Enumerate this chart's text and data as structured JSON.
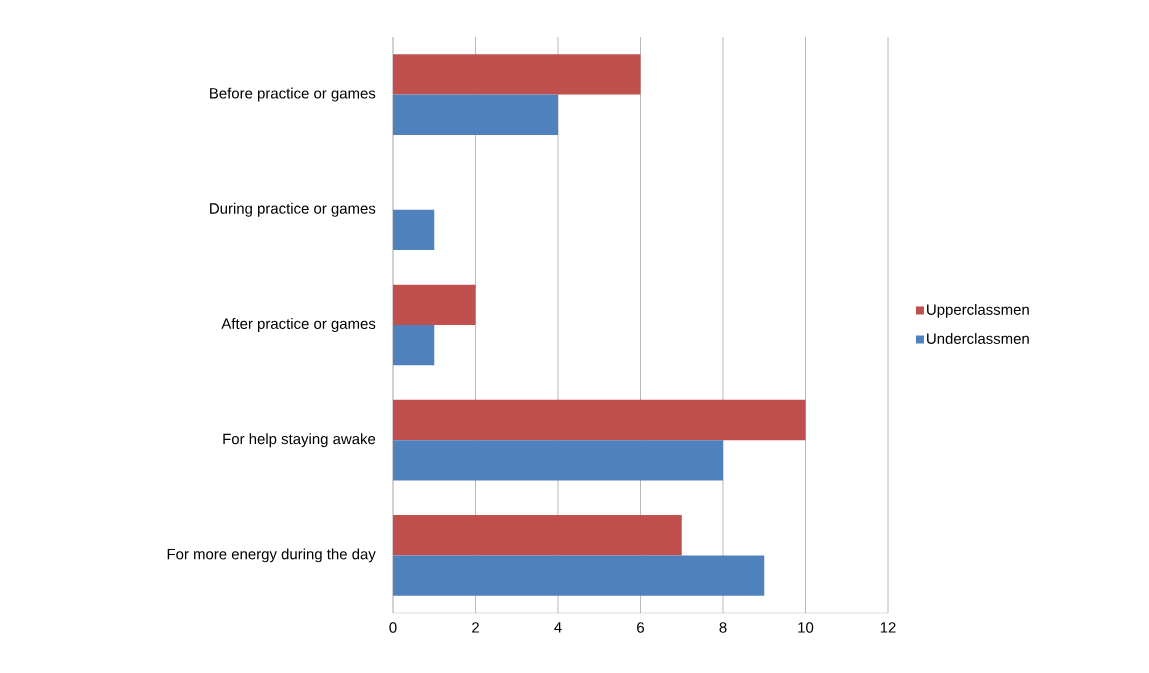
{
  "chart_data": {
    "type": "bar",
    "orientation": "horizontal",
    "categories": [
      "Before practice or games",
      "During practice or games",
      "After practice or games",
      "For help staying awake",
      "For more energy during the day"
    ],
    "series": [
      {
        "name": "Upperclassmen",
        "color": "#c0504d",
        "values": [
          6,
          0,
          2,
          10,
          7
        ]
      },
      {
        "name": "Underclassmen",
        "color": "#4f81bd",
        "values": [
          4,
          1,
          1,
          8,
          9
        ]
      }
    ],
    "xlim": [
      0,
      12
    ],
    "xticks": [
      0,
      2,
      4,
      6,
      8,
      10,
      12
    ],
    "grid": "x",
    "legend": "right"
  }
}
